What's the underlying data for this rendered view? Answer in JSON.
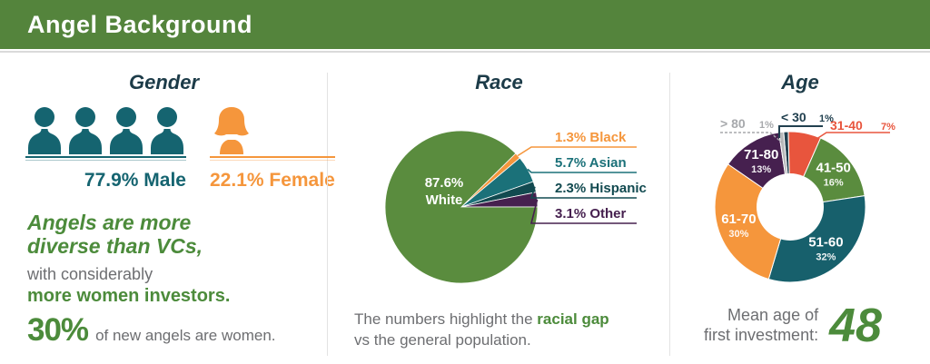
{
  "header": {
    "title": "Angel Background"
  },
  "colors": {
    "header_green": "#54843C",
    "text_green": "#4C8B3B",
    "teal": "#156470",
    "navy": "#1C3B48",
    "orange": "#F5963C",
    "red": "#E8553D",
    "purple": "#46204F",
    "gray": "#6D6E71",
    "gray_light": "#A7A9AC"
  },
  "gender": {
    "title": "Gender",
    "male_icon_count": 4,
    "female_icon_count": 1,
    "male_pct_label": "77.9% Male",
    "female_pct_label": "22.1% Female",
    "headline_line1": "Angels are more",
    "headline_line2": "diverse than VCs,",
    "sub_line1": "with considerably",
    "sub_line2": "more women investors.",
    "stat_value": "30%",
    "stat_caption": "of new angels are women."
  },
  "race": {
    "title": "Race",
    "footer_prefix": "The numbers highlight the ",
    "footer_bold": "racial gap",
    "footer_suffix": "vs the general population."
  },
  "age": {
    "title": "Age",
    "footer_label_line1": "Mean age of",
    "footer_label_line2": "first investment:",
    "footer_value": "48"
  },
  "chart_data": [
    {
      "type": "pie",
      "title": "Race",
      "categories": [
        "White",
        "Black",
        "Asian",
        "Hispanic",
        "Other"
      ],
      "values": [
        87.6,
        1.3,
        5.7,
        2.3,
        3.1
      ],
      "labels": [
        "87.6% White",
        "1.3% Black",
        "5.7% Asian",
        "2.3% Hispanic",
        "3.1% Other"
      ],
      "center_label_lines": [
        "87.6%",
        "White"
      ],
      "colors": [
        "#5A8C3E",
        "#F5963C",
        "#1B7179",
        "#124A50",
        "#46204F"
      ],
      "legend_position": "right-callouts"
    },
    {
      "type": "donut",
      "title": "Age",
      "categories": [
        "< 30",
        "31-40",
        "41-50",
        "51-60",
        "61-70",
        "71-80",
        "> 80"
      ],
      "values": [
        1,
        7,
        16,
        32,
        30,
        13,
        1
      ],
      "unit": "%",
      "colors": [
        "#21404F",
        "#E8553D",
        "#5A8C3E",
        "#17606C",
        "#F5963C",
        "#46204F",
        "#B7B9BB"
      ],
      "label_colors_external": [
        "#21404F",
        "#E8553D",
        "#A7A9AC"
      ],
      "inside_label_min_pct": 13,
      "legend_position": "in-slice"
    }
  ]
}
